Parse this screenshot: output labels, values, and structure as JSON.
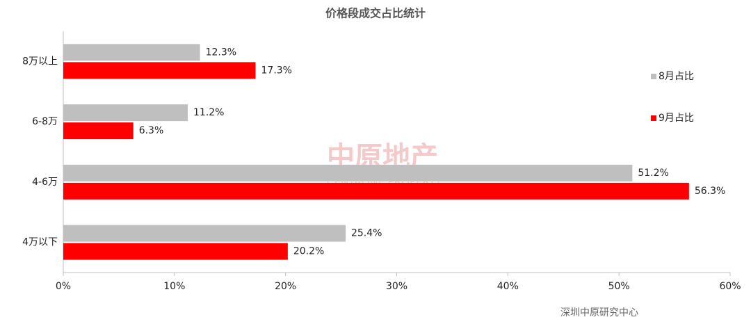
{
  "chart_data": {
    "type": "barh",
    "title": "价格段成交占比统计",
    "categories": [
      "8万以上",
      "6-8万",
      "4-6万",
      "4万以下"
    ],
    "series": [
      {
        "name": "8月占比",
        "color": "#bfbfbf",
        "values": [
          12.3,
          11.2,
          51.2,
          25.4
        ],
        "value_labels": [
          "12.3%",
          "11.2%",
          "51.2%",
          "25.4%"
        ]
      },
      {
        "name": "9月占比",
        "color": "#ff0000",
        "values": [
          17.3,
          6.3,
          56.3,
          20.2
        ],
        "value_labels": [
          "17.3%",
          "6.3%",
          "56.3%",
          "20.2%"
        ]
      }
    ],
    "xlim": [
      0,
      60
    ],
    "xticks": [
      {
        "value": 0,
        "label": "0%"
      },
      {
        "value": 10,
        "label": "10%"
      },
      {
        "value": 20,
        "label": "20%"
      },
      {
        "value": 30,
        "label": "30%"
      },
      {
        "value": 40,
        "label": "40%"
      },
      {
        "value": 50,
        "label": "50%"
      },
      {
        "value": 60,
        "label": "60%"
      }
    ],
    "legend": "right",
    "source": "深圳中原研究中心",
    "watermark": "中原地产",
    "watermark_en": "CENTALINE PROPERTY"
  }
}
